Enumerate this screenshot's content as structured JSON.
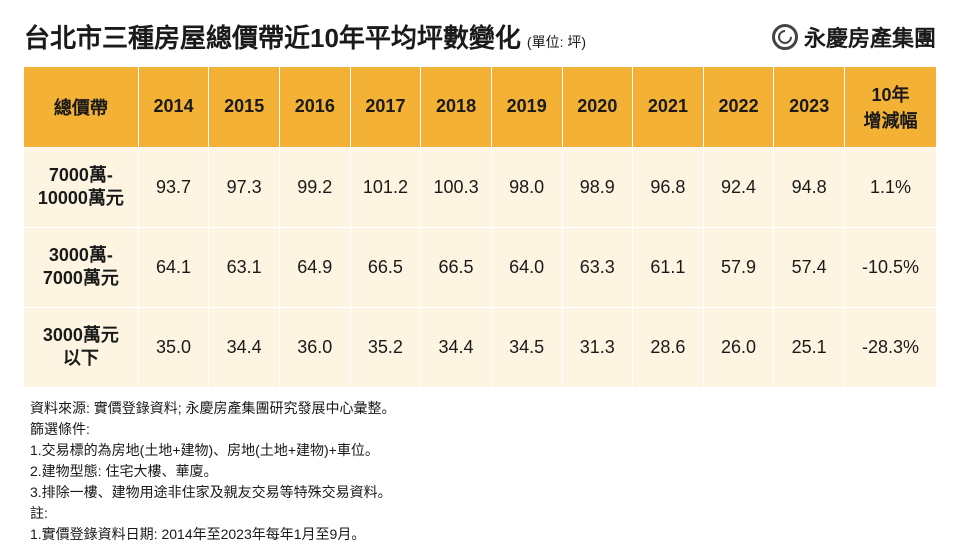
{
  "title": "台北市三種房屋總價帶近10年平均坪數變化",
  "unit": "(單位: 坪)",
  "brand": "永慶房產集團",
  "table": {
    "header_first": "總價帶",
    "years": [
      "2014",
      "2015",
      "2016",
      "2017",
      "2018",
      "2019",
      "2020",
      "2021",
      "2022",
      "2023"
    ],
    "header_last": "10年\n增減幅",
    "rows": [
      {
        "label": "7000萬-\n10000萬元",
        "values": [
          "93.7",
          "97.3",
          "99.2",
          "101.2",
          "100.3",
          "98.0",
          "98.9",
          "96.8",
          "92.4",
          "94.8"
        ],
        "change": "1.1%"
      },
      {
        "label": "3000萬-\n7000萬元",
        "values": [
          "64.1",
          "63.1",
          "64.9",
          "66.5",
          "66.5",
          "64.0",
          "63.3",
          "61.1",
          "57.9",
          "57.4"
        ],
        "change": "-10.5%"
      },
      {
        "label": "3000萬元\n以下",
        "values": [
          "35.0",
          "34.4",
          "36.0",
          "35.2",
          "34.4",
          "34.5",
          "31.3",
          "28.6",
          "26.0",
          "25.1"
        ],
        "change": "-28.3%"
      }
    ]
  },
  "footnotes": [
    "資料來源: 實價登錄資料; 永慶房產集團研究發展中心彙整。",
    "篩選條件:",
    "1.交易標的為房地(土地+建物)、房地(土地+建物)+車位。",
    "2.建物型態: 住宅大樓、華廈。",
    "3.排除一樓、建物用途非住家及親友交易等特殊交易資料。",
    "註:",
    "1.實價登錄資料日期: 2014年至2023年每年1月至9月。"
  ],
  "colors": {
    "header_bg": "#f3b236",
    "cell_bg": "#fdf5e2",
    "text": "#1a1a1a",
    "border": "#ffffff"
  }
}
